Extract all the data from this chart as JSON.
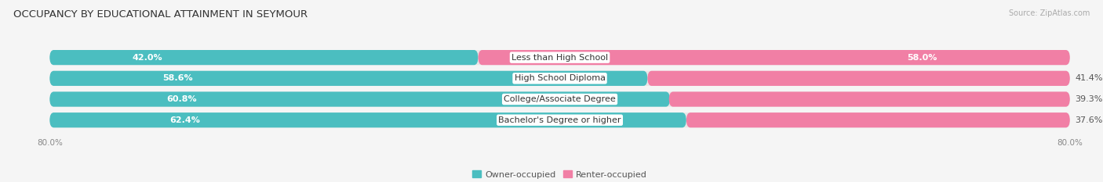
{
  "title": "OCCUPANCY BY EDUCATIONAL ATTAINMENT IN SEYMOUR",
  "source": "Source: ZipAtlas.com",
  "categories": [
    "Less than High School",
    "High School Diploma",
    "College/Associate Degree",
    "Bachelor's Degree or higher"
  ],
  "owner_values": [
    42.0,
    58.6,
    60.8,
    62.4
  ],
  "renter_values": [
    58.0,
    41.4,
    39.3,
    37.6
  ],
  "owner_color": "#4bbec0",
  "renter_color": "#f17fa5",
  "background_color": "#f5f5f5",
  "bar_bg_color": "#e8e8e8",
  "bar_row_bg": "#ebebeb",
  "title_fontsize": 9.5,
  "source_fontsize": 7,
  "value_fontsize": 8,
  "label_fontsize": 8,
  "legend_fontsize": 8,
  "bar_height": 0.72,
  "total_width": 100.0,
  "x_left_label": "80.0%",
  "x_right_label": "80.0%"
}
